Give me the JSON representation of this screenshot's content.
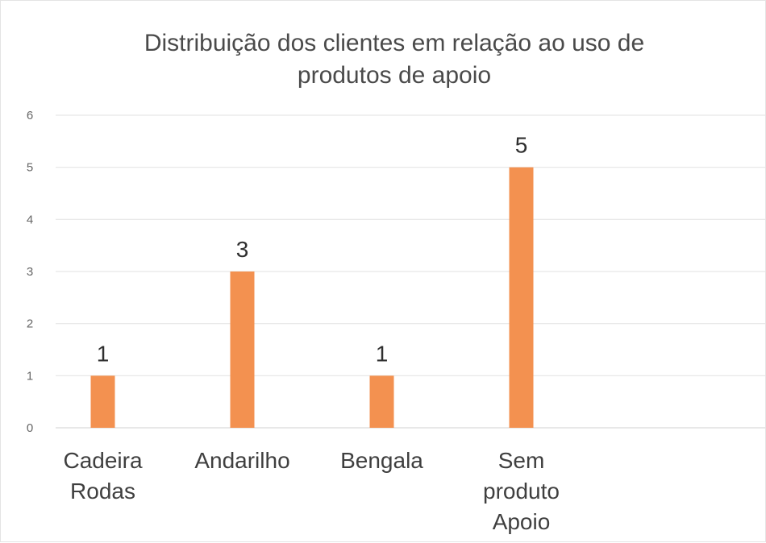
{
  "chart_data": {
    "type": "bar",
    "title_lines": [
      "Distribuição dos clientes em relação ao uso de",
      "produtos de apoio"
    ],
    "categories": [
      [
        "Cadeira",
        "Rodas"
      ],
      [
        "Andarilho"
      ],
      [
        "Bengala"
      ],
      [
        "Sem",
        "produto",
        "Apoio"
      ]
    ],
    "values": [
      1,
      3,
      1,
      5
    ],
    "data_labels": [
      "1",
      "3",
      "1",
      "5"
    ],
    "y_ticks": [
      "0",
      "1",
      "2",
      "3",
      "4",
      "5",
      "6"
    ],
    "ylim": [
      0,
      6
    ],
    "grid": true,
    "legend": false,
    "colors": {
      "bar": "#f39150",
      "grid": "#e6e6e6",
      "axis": "#d9d9d9"
    }
  }
}
